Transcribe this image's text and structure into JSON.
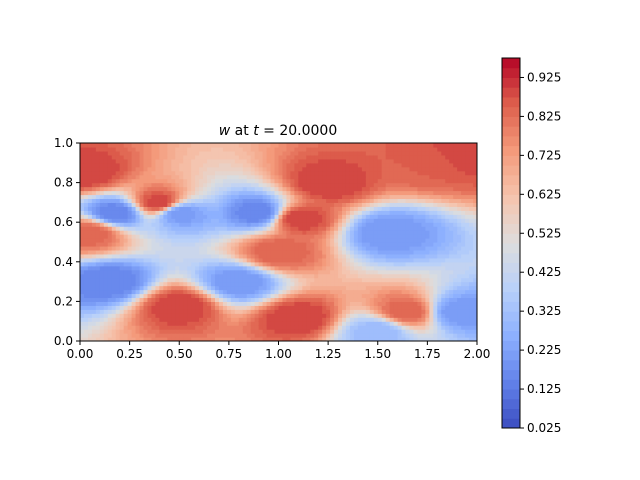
{
  "chart_data": {
    "type": "heatmap",
    "title": {
      "var": "w",
      "mid": " at ",
      "tvar": "t",
      "eq": " = ",
      "value": "20.0000"
    },
    "xlabel": "",
    "ylabel": "",
    "xlim": [
      0,
      2
    ],
    "ylim": [
      0,
      1
    ],
    "x_ticks": [
      "0.00",
      "0.25",
      "0.50",
      "0.75",
      "1.00",
      "1.25",
      "1.50",
      "1.75",
      "2.00"
    ],
    "y_ticks": [
      "0.0",
      "0.2",
      "0.4",
      "0.6",
      "0.8",
      "1.0"
    ],
    "colorbar": {
      "colormap": "coolwarm",
      "min": 0.025,
      "max": 0.975,
      "levels": 38,
      "ticks": [
        "0.025",
        "0.125",
        "0.225",
        "0.325",
        "0.425",
        "0.525",
        "0.625",
        "0.725",
        "0.825",
        "0.925"
      ]
    },
    "field": {
      "description": "contoured scalar field w(x,y), x in [0,2], y in [0,1]",
      "anchors": [
        {
          "x": 0.03,
          "y": 0.85,
          "w": 0.9
        },
        {
          "x": 0.05,
          "y": 0.55,
          "w": 0.85
        },
        {
          "x": 0.18,
          "y": 0.65,
          "w": 0.15
        },
        {
          "x": 0.15,
          "y": 0.3,
          "w": 0.15
        },
        {
          "x": 0.4,
          "y": 0.7,
          "w": 0.9
        },
        {
          "x": 0.5,
          "y": 0.65,
          "w": 0.2
        },
        {
          "x": 0.9,
          "y": 0.65,
          "w": 0.15
        },
        {
          "x": 1.1,
          "y": 0.62,
          "w": 0.9
        },
        {
          "x": 1.25,
          "y": 0.8,
          "w": 0.9
        },
        {
          "x": 1.0,
          "y": 0.45,
          "w": 0.85
        },
        {
          "x": 0.8,
          "y": 0.3,
          "w": 0.2
        },
        {
          "x": 0.5,
          "y": 0.18,
          "w": 0.9
        },
        {
          "x": 1.1,
          "y": 0.12,
          "w": 0.9
        },
        {
          "x": 1.55,
          "y": 0.55,
          "w": 0.2
        },
        {
          "x": 1.75,
          "y": 0.9,
          "w": 0.85
        },
        {
          "x": 1.95,
          "y": 0.95,
          "w": 0.9
        },
        {
          "x": 1.65,
          "y": 0.15,
          "w": 0.85
        },
        {
          "x": 1.9,
          "y": 0.15,
          "w": 0.2
        },
        {
          "x": 1.5,
          "y": 0.05,
          "w": 0.3
        }
      ]
    }
  }
}
